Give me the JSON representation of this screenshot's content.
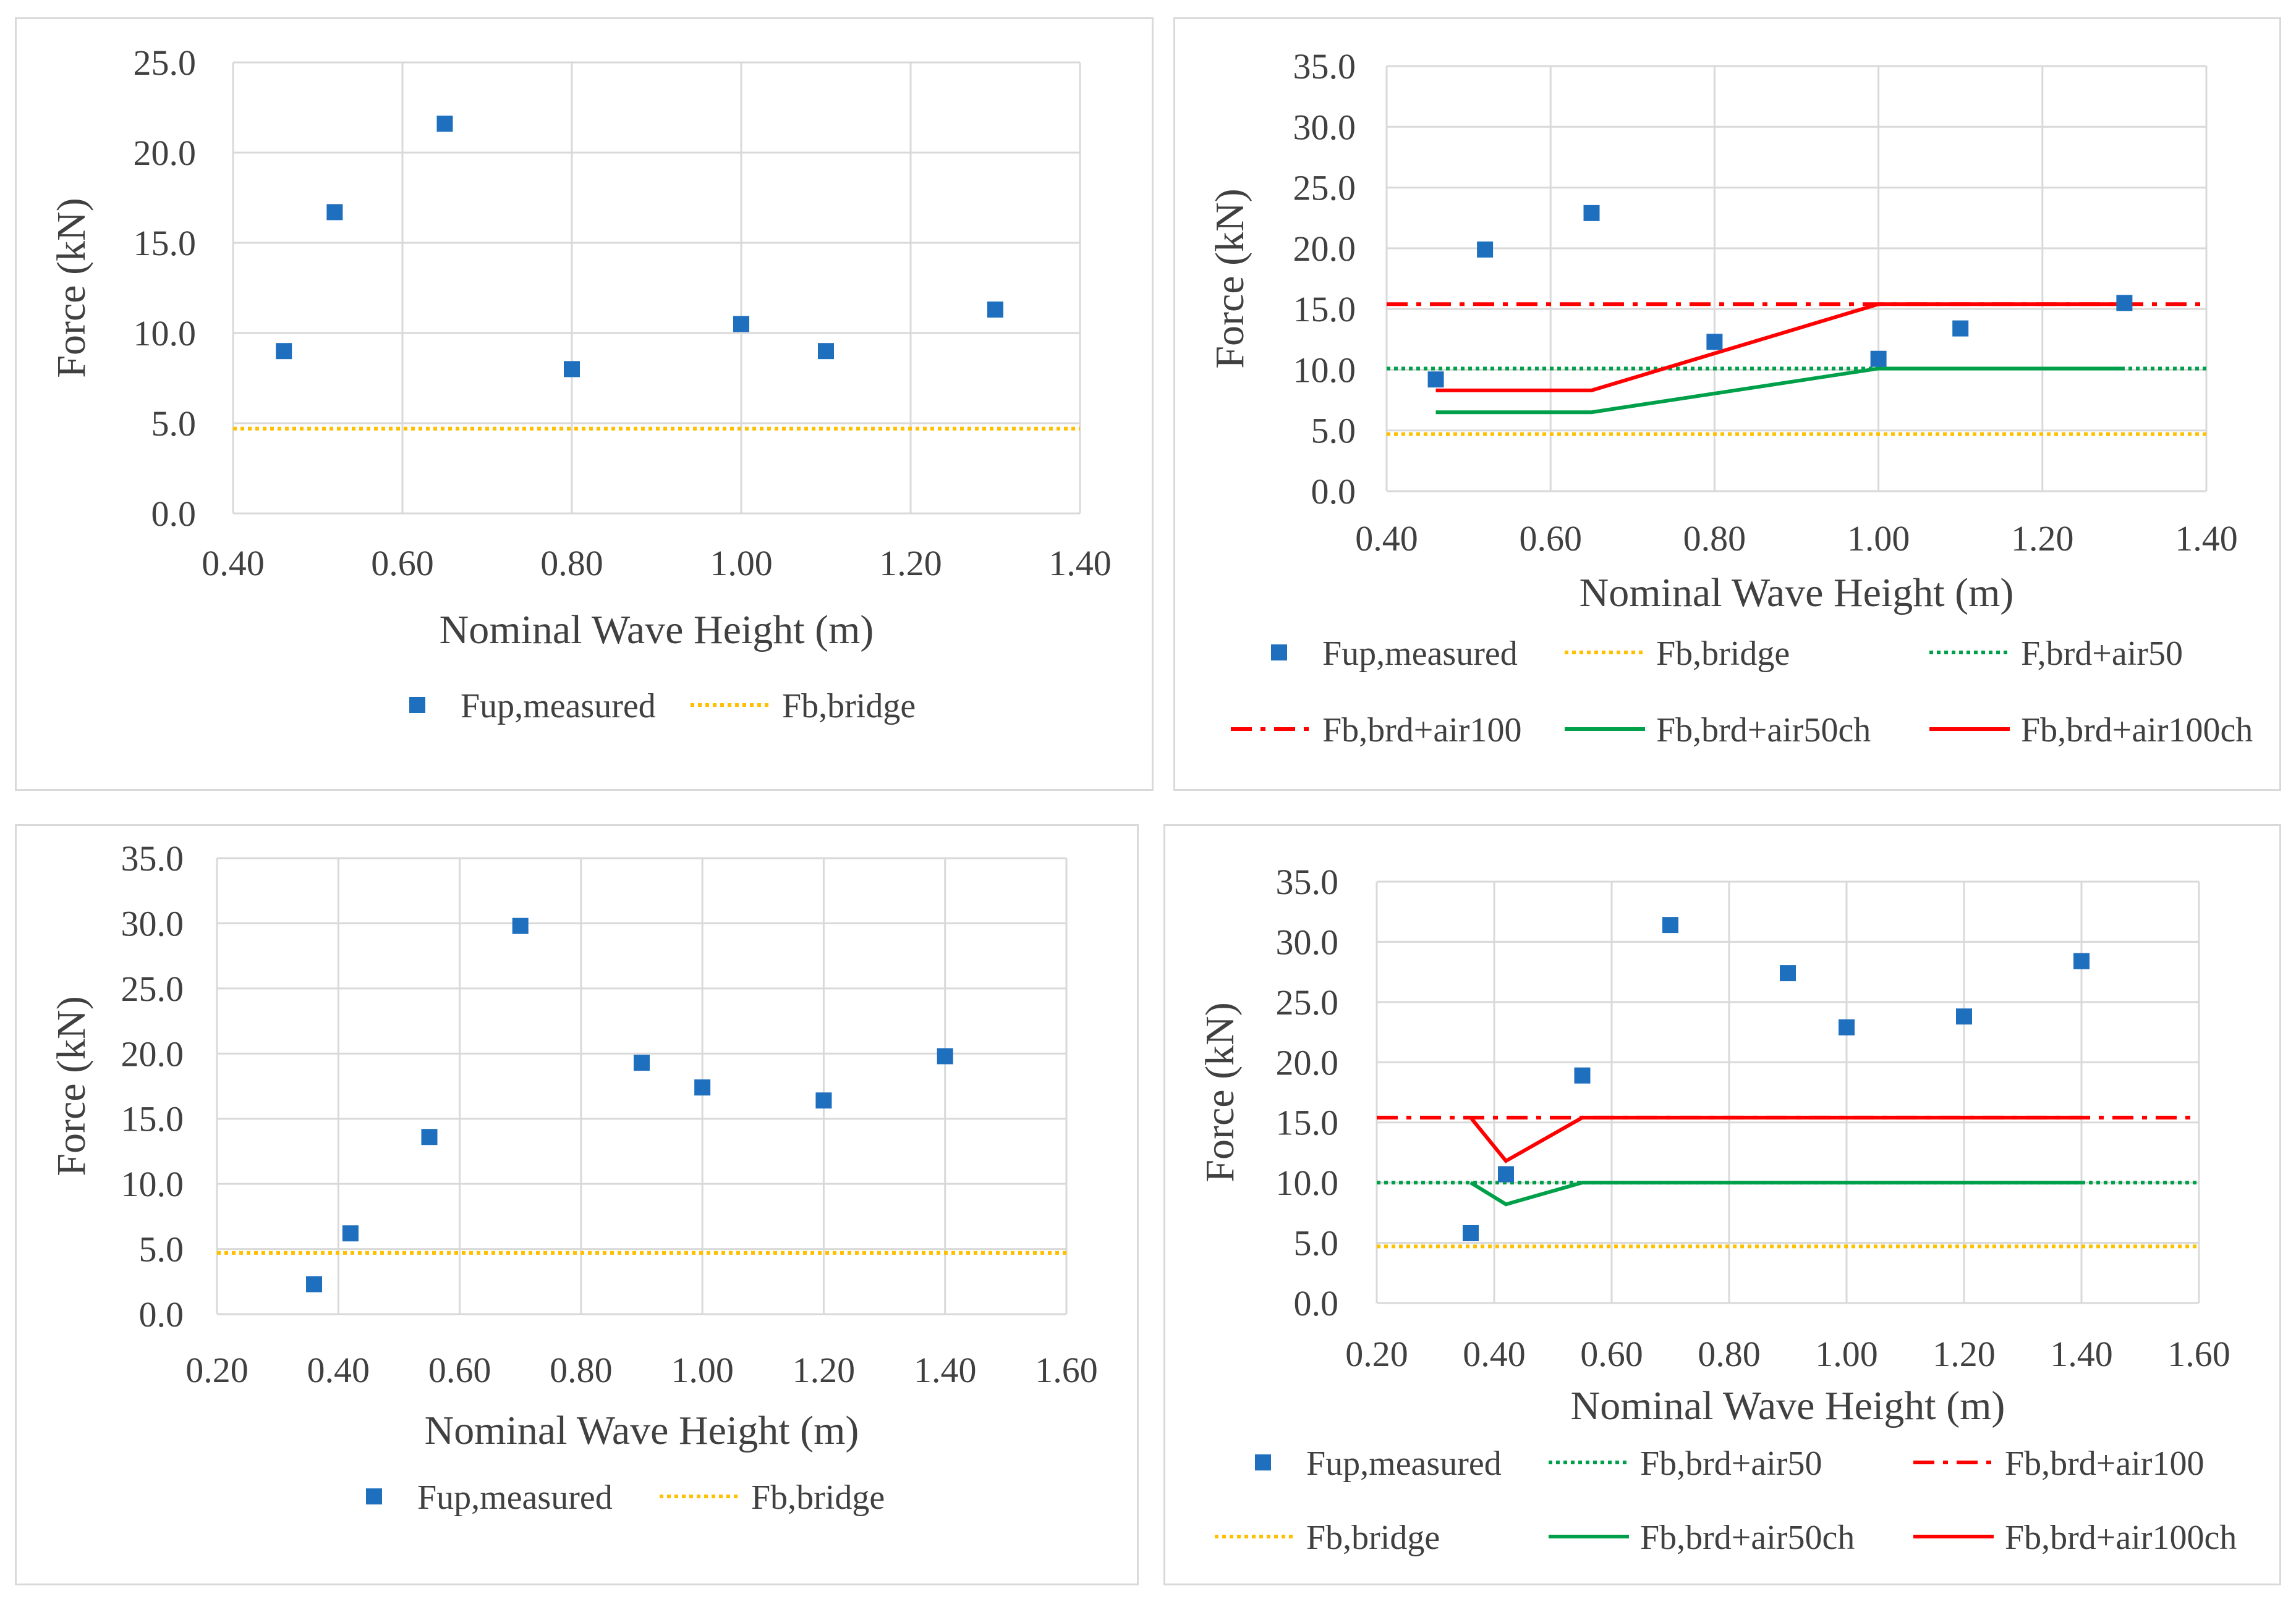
{
  "chart_data": [
    {
      "type": "scatter",
      "title": "",
      "xlabel": "Nominal Wave Height (m)",
      "ylabel": "Force (kN)",
      "xlim": [
        0.4,
        1.4
      ],
      "ylim": [
        0,
        25
      ],
      "xticks": [
        "0.40",
        "0.60",
        "0.80",
        "1.00",
        "1.20",
        "1.40"
      ],
      "yticks": [
        "0.0",
        "5.0",
        "10.0",
        "15.0",
        "20.0",
        "25.0"
      ],
      "grid": true,
      "legend_position": "bottom",
      "series": [
        {
          "name": "Fup,measured",
          "kind": "marker",
          "color": "#1f6fbf",
          "x": [
            0.46,
            0.52,
            0.65,
            0.8,
            1.0,
            1.1,
            1.3
          ],
          "y": [
            9.0,
            16.7,
            21.6,
            8.0,
            10.5,
            9.0,
            11.3
          ]
        },
        {
          "name": "Fb,bridge",
          "kind": "line",
          "dash": "dotted",
          "color": "#ffc000",
          "x": [
            0.4,
            1.4
          ],
          "y": [
            4.7,
            4.7
          ]
        }
      ]
    },
    {
      "type": "scatter",
      "title": "",
      "xlabel": "Nominal Wave Height (m)",
      "ylabel": "Force (kN)",
      "xlim": [
        0.4,
        1.4
      ],
      "ylim": [
        0,
        35
      ],
      "xticks": [
        "0.40",
        "0.60",
        "0.80",
        "1.00",
        "1.20",
        "1.40"
      ],
      "yticks": [
        "0.0",
        "5.0",
        "10.0",
        "15.0",
        "20.0",
        "25.0",
        "30.0",
        "35.0"
      ],
      "grid": true,
      "legend_position": "bottom",
      "series": [
        {
          "name": "Fup,measured",
          "kind": "marker",
          "color": "#1f6fbf",
          "x": [
            0.46,
            0.52,
            0.65,
            0.8,
            1.0,
            1.1,
            1.3
          ],
          "y": [
            9.2,
            19.9,
            22.9,
            12.3,
            10.9,
            13.4,
            15.5
          ]
        },
        {
          "name": "Fb,bridge",
          "kind": "line",
          "dash": "dotted",
          "color": "#ffc000",
          "x": [
            0.4,
            1.4
          ],
          "y": [
            4.7,
            4.7
          ]
        },
        {
          "name": "F,brd+air50",
          "kind": "line",
          "dash": "dotted",
          "color": "#00a04a",
          "x": [
            0.4,
            1.4
          ],
          "y": [
            10.1,
            10.1
          ]
        },
        {
          "name": "Fb,brd+air100",
          "kind": "line",
          "dash": "dashdot",
          "color": "#ff0000",
          "x": [
            0.4,
            1.4
          ],
          "y": [
            15.4,
            15.4
          ]
        },
        {
          "name": "Fb,brd+air50ch",
          "kind": "line",
          "dash": "solid",
          "color": "#00a04a",
          "x": [
            0.46,
            0.65,
            1.0,
            1.3
          ],
          "y": [
            6.5,
            6.5,
            10.1,
            10.1
          ]
        },
        {
          "name": "Fb,brd+air100ch",
          "kind": "line",
          "dash": "solid",
          "color": "#ff0000",
          "x": [
            0.46,
            0.65,
            1.0,
            1.3
          ],
          "y": [
            8.3,
            8.3,
            15.4,
            15.4
          ]
        }
      ]
    },
    {
      "type": "scatter",
      "title": "",
      "xlabel": "Nominal Wave Height (m)",
      "ylabel": "Force (kN)",
      "xlim": [
        0.2,
        1.6
      ],
      "ylim": [
        0,
        35
      ],
      "xticks": [
        "0.20",
        "0.40",
        "0.60",
        "0.80",
        "1.00",
        "1.20",
        "1.40",
        "1.60"
      ],
      "yticks": [
        "0.0",
        "5.0",
        "10.0",
        "15.0",
        "20.0",
        "25.0",
        "30.0",
        "35.0"
      ],
      "grid": true,
      "legend_position": "bottom",
      "series": [
        {
          "name": "Fup,measured",
          "kind": "marker",
          "color": "#1f6fbf",
          "x": [
            0.36,
            0.42,
            0.55,
            0.7,
            0.9,
            1.0,
            1.2,
            1.4
          ],
          "y": [
            2.3,
            6.2,
            13.6,
            29.8,
            19.3,
            17.4,
            16.4,
            19.8
          ]
        },
        {
          "name": "Fb,bridge",
          "kind": "line",
          "dash": "dotted",
          "color": "#ffc000",
          "x": [
            0.2,
            1.6
          ],
          "y": [
            4.7,
            4.7
          ]
        }
      ]
    },
    {
      "type": "scatter",
      "title": "",
      "xlabel": "Nominal Wave Height (m)",
      "ylabel": "Force (kN)",
      "xlim": [
        0.2,
        1.6
      ],
      "ylim": [
        0,
        35
      ],
      "xticks": [
        "0.20",
        "0.40",
        "0.60",
        "0.80",
        "1.00",
        "1.20",
        "1.40",
        "1.60"
      ],
      "yticks": [
        "0.0",
        "5.0",
        "10.0",
        "15.0",
        "20.0",
        "25.0",
        "30.0",
        "35.0"
      ],
      "grid": true,
      "legend_position": "bottom",
      "series": [
        {
          "name": "Fup,measured",
          "kind": "marker",
          "color": "#1f6fbf",
          "x": [
            0.36,
            0.42,
            0.55,
            0.7,
            0.9,
            1.0,
            1.2,
            1.4
          ],
          "y": [
            5.8,
            10.7,
            18.9,
            31.4,
            27.4,
            22.9,
            23.8,
            28.4
          ]
        },
        {
          "name": "Fb,brd+air50",
          "kind": "line",
          "dash": "dotted",
          "color": "#00a04a",
          "x": [
            0.2,
            1.6
          ],
          "y": [
            10.0,
            10.0
          ]
        },
        {
          "name": "Fb,brd+air100",
          "kind": "line",
          "dash": "dashdot",
          "color": "#ff0000",
          "x": [
            0.2,
            1.6
          ],
          "y": [
            15.4,
            15.4
          ]
        },
        {
          "name": "Fb,bridge",
          "kind": "line",
          "dash": "dotted",
          "color": "#ffc000",
          "x": [
            0.2,
            1.6
          ],
          "y": [
            4.7,
            4.7
          ]
        },
        {
          "name": "Fb,brd+air50ch",
          "kind": "line",
          "dash": "solid",
          "color": "#00a04a",
          "x": [
            0.36,
            0.42,
            0.55,
            1.4
          ],
          "y": [
            10.0,
            8.2,
            10.0,
            10.0
          ]
        },
        {
          "name": "Fb,brd+air100ch",
          "kind": "line",
          "dash": "solid",
          "color": "#ff0000",
          "x": [
            0.36,
            0.42,
            0.55,
            1.4
          ],
          "y": [
            15.4,
            11.8,
            15.4,
            15.4
          ]
        }
      ]
    }
  ]
}
